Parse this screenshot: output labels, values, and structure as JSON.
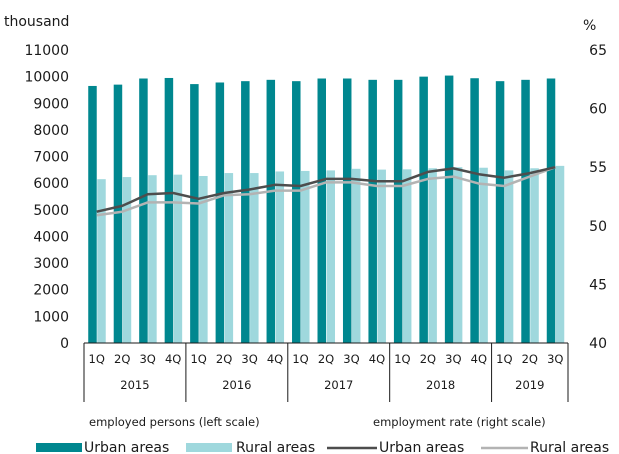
{
  "chart_data": {
    "type": "bar",
    "categories": [
      "1Q",
      "2Q",
      "3Q",
      "4Q",
      "1Q",
      "2Q",
      "3Q",
      "4Q",
      "1Q",
      "2Q",
      "3Q",
      "4Q",
      "1Q",
      "2Q",
      "3Q",
      "4Q",
      "1Q",
      "2Q",
      "3Q"
    ],
    "years": [
      {
        "label": "2015",
        "count": 4
      },
      {
        "label": "2016",
        "count": 4
      },
      {
        "label": "2017",
        "count": 4
      },
      {
        "label": "2018",
        "count": 4
      },
      {
        "label": "2019",
        "count": 3
      }
    ],
    "left_axis": {
      "unit": "thousand",
      "ylim": [
        0,
        11000
      ],
      "ticks": [
        "0",
        "1000",
        "2000",
        "3000",
        "4000",
        "5000",
        "6000",
        "7000",
        "8000",
        "9000",
        "10000",
        "11000"
      ]
    },
    "right_axis": {
      "unit": "%",
      "ylim": [
        40,
        65
      ],
      "ticks": [
        "40",
        "45",
        "50",
        "55",
        "60",
        "65"
      ]
    },
    "series": [
      {
        "name": "Urban areas",
        "type": "bar",
        "axis": "left",
        "color": "#00878f",
        "values": [
          9650,
          9700,
          9930,
          9950,
          9720,
          9780,
          9830,
          9880,
          9830,
          9930,
          9930,
          9880,
          9880,
          10000,
          10040,
          9940,
          9830,
          9880,
          9930
        ]
      },
      {
        "name": "Rural areas",
        "type": "bar",
        "axis": "left",
        "color": "#9fd8dd",
        "values": [
          6150,
          6230,
          6300,
          6320,
          6270,
          6380,
          6380,
          6440,
          6460,
          6480,
          6540,
          6510,
          6520,
          6560,
          6600,
          6580,
          6480,
          6560,
          6650
        ]
      },
      {
        "name": "Urban areas",
        "type": "line",
        "axis": "right",
        "color": "#4d4d4d",
        "values": [
          51.2,
          51.7,
          52.7,
          52.8,
          52.3,
          52.8,
          53.1,
          53.5,
          53.4,
          54.0,
          54.0,
          53.8,
          53.8,
          54.6,
          54.9,
          54.4,
          54.1,
          54.5,
          55.0
        ]
      },
      {
        "name": "Rural areas",
        "type": "line",
        "axis": "right",
        "color": "#b3b3b3",
        "values": [
          50.9,
          51.2,
          52.0,
          52.0,
          51.9,
          52.6,
          52.7,
          53.0,
          53.0,
          53.7,
          53.7,
          53.4,
          53.4,
          54.0,
          54.2,
          53.6,
          53.4,
          54.2,
          55.0
        ]
      }
    ],
    "notes": {
      "left": "employed persons (left scale)",
      "right": "employment rate (right scale)"
    },
    "grid": false,
    "legend_position": "bottom"
  }
}
